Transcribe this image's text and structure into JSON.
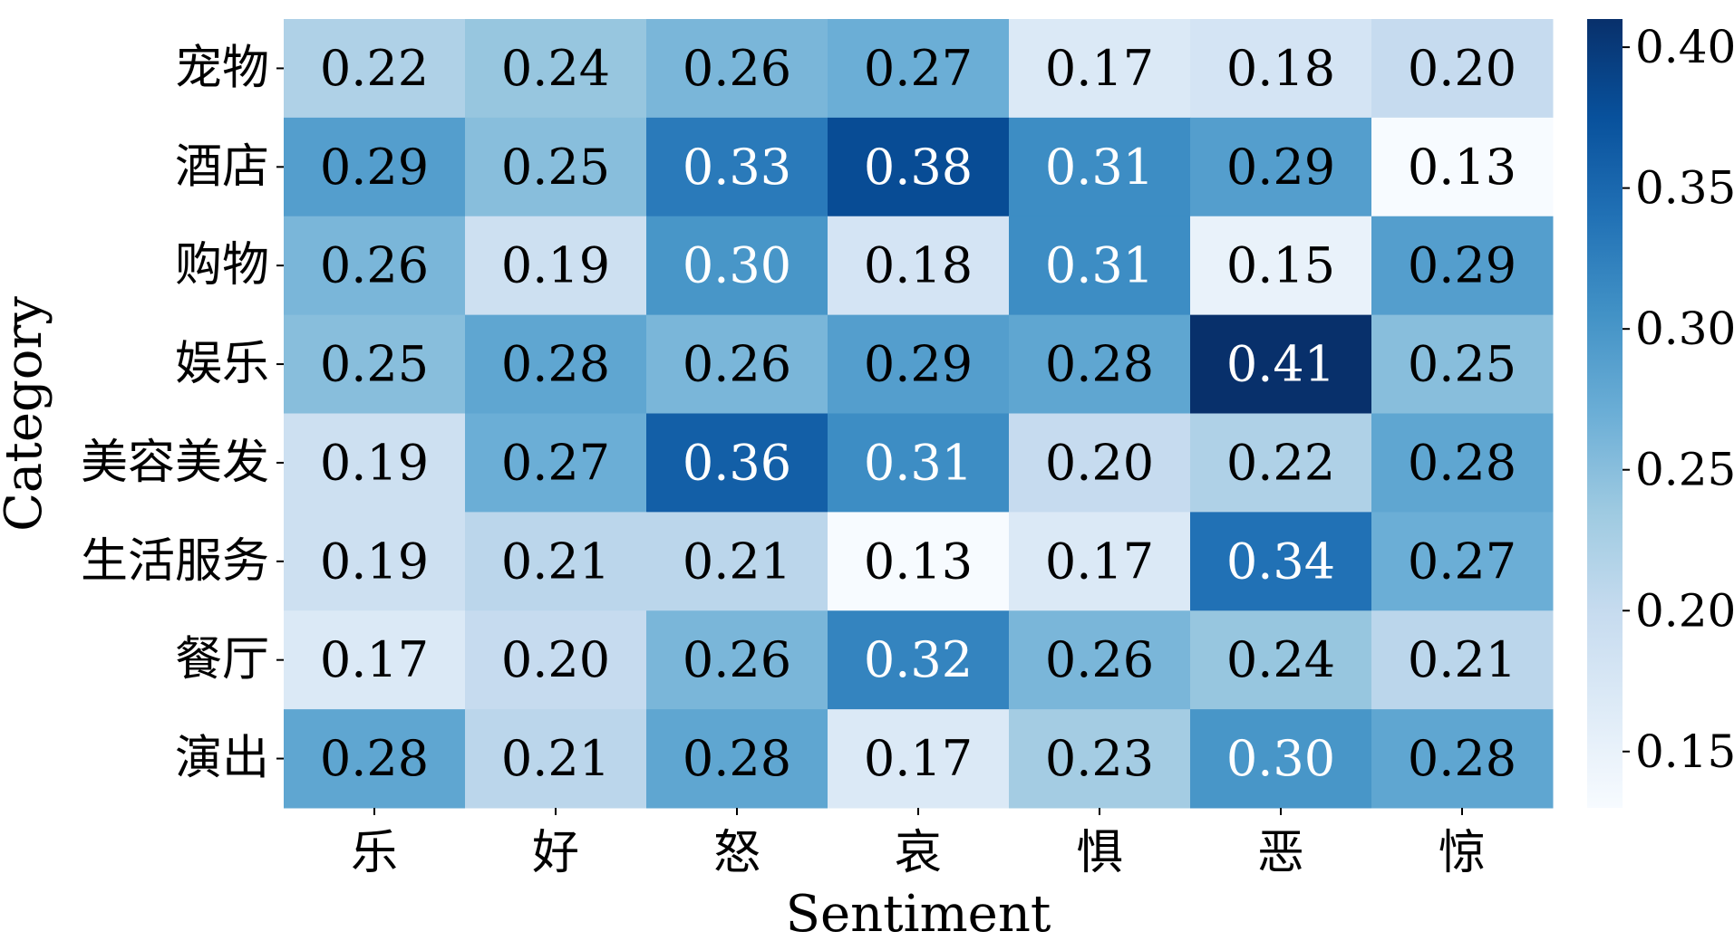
{
  "chart_data": {
    "type": "heatmap",
    "xlabel": "Sentiment",
    "ylabel": "Category",
    "x_categories": [
      "乐",
      "好",
      "怒",
      "哀",
      "惧",
      "恶",
      "惊"
    ],
    "y_categories": [
      "宠物",
      "酒店",
      "购物",
      "娱乐",
      "美容美发",
      "生活服务",
      "餐厅",
      "演出"
    ],
    "values": [
      [
        0.22,
        0.24,
        0.26,
        0.27,
        0.17,
        0.18,
        0.2
      ],
      [
        0.29,
        0.25,
        0.33,
        0.38,
        0.31,
        0.29,
        0.13
      ],
      [
        0.26,
        0.19,
        0.3,
        0.18,
        0.31,
        0.15,
        0.29
      ],
      [
        0.25,
        0.28,
        0.26,
        0.29,
        0.28,
        0.41,
        0.25
      ],
      [
        0.19,
        0.27,
        0.36,
        0.31,
        0.2,
        0.22,
        0.28
      ],
      [
        0.19,
        0.21,
        0.21,
        0.13,
        0.17,
        0.34,
        0.27
      ],
      [
        0.17,
        0.2,
        0.26,
        0.32,
        0.26,
        0.24,
        0.21
      ],
      [
        0.28,
        0.21,
        0.28,
        0.17,
        0.23,
        0.3,
        0.28
      ]
    ],
    "colorbar": {
      "colormap": "Blues",
      "vmin": 0.13,
      "vmax": 0.41,
      "ticks": [
        0.15,
        0.2,
        0.25,
        0.3,
        0.35,
        0.4
      ],
      "tick_labels": [
        "0.15",
        "0.20",
        "0.25",
        "0.30",
        "0.35",
        "0.40"
      ]
    },
    "annotation_decimals": 2,
    "grid": false
  }
}
